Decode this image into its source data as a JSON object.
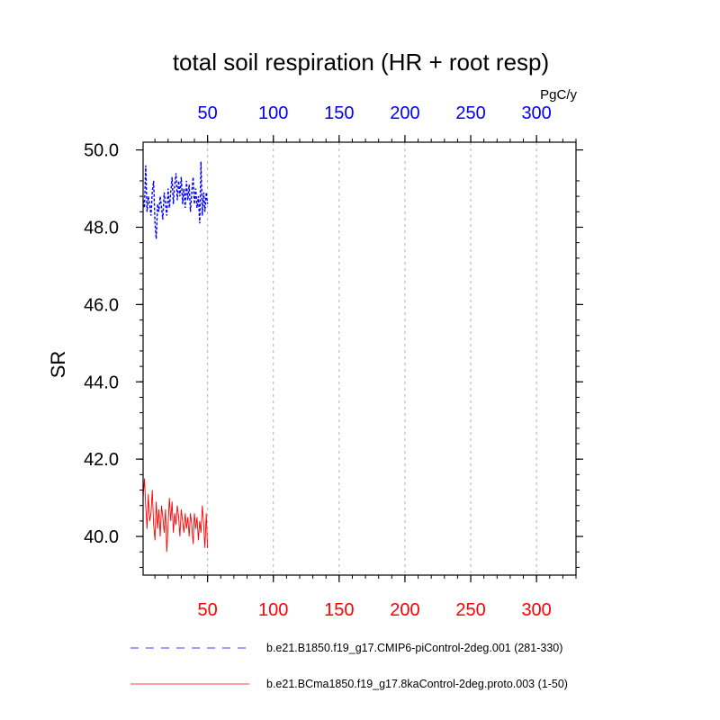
{
  "chart_data": {
    "type": "line",
    "title": "total soil respiration (HR + root resp)",
    "ylabel": "SR",
    "units": "PgC/y",
    "ylim": [
      39.0,
      50.2
    ],
    "y_ticks": [
      "40.0",
      "42.0",
      "44.0",
      "46.0",
      "48.0",
      "50.0"
    ],
    "y_tick_values": [
      40,
      42,
      44,
      46,
      48,
      50
    ],
    "xlim": [
      1,
      330
    ],
    "x_ticks": [
      "50",
      "100",
      "150",
      "200",
      "250",
      "300"
    ],
    "x_tick_values": [
      50,
      100,
      150,
      200,
      250,
      300
    ],
    "grid": "vertical dashed at x ticks",
    "legend_placement": "bottom",
    "series": [
      {
        "name": "b.e21.B1850.f19_g17.CMIP6-piControl-2deg.001 (281-330)",
        "color": "#0000ff",
        "style": "dashed",
        "axis": "top",
        "x": [
          1,
          2,
          3,
          4,
          5,
          6,
          7,
          8,
          9,
          10,
          11,
          12,
          13,
          14,
          15,
          16,
          17,
          18,
          19,
          20,
          21,
          22,
          23,
          24,
          25,
          26,
          27,
          28,
          29,
          30,
          31,
          32,
          33,
          34,
          35,
          36,
          37,
          38,
          39,
          40,
          41,
          42,
          43,
          44,
          45,
          46,
          47,
          48,
          49,
          50
        ],
        "y": [
          48.7,
          48.5,
          49.6,
          48.4,
          48.8,
          48.6,
          48.3,
          48.9,
          49.2,
          48.1,
          47.7,
          48.6,
          48.4,
          48.8,
          48.5,
          48.2,
          48.9,
          48.6,
          48.3,
          49.0,
          48.5,
          48.9,
          49.3,
          48.6,
          49.1,
          49.4,
          48.7,
          49.2,
          48.8,
          49.3,
          48.6,
          49.0,
          48.5,
          49.2,
          48.7,
          49.1,
          48.4,
          48.9,
          49.3,
          48.6,
          49.0,
          48.5,
          48.8,
          48.1,
          49.7,
          48.3,
          48.9,
          48.4,
          48.9,
          48.6
        ]
      },
      {
        "name": "b.e21.BCma1850.f19_g17.8kaControl-2deg.proto.003 (1-50)",
        "color": "#ff0000",
        "style": "solid",
        "axis": "bottom",
        "x": [
          1,
          2,
          3,
          4,
          5,
          6,
          7,
          8,
          9,
          10,
          11,
          12,
          13,
          14,
          15,
          16,
          17,
          18,
          19,
          20,
          21,
          22,
          23,
          24,
          25,
          26,
          27,
          28,
          29,
          30,
          31,
          32,
          33,
          34,
          35,
          36,
          37,
          38,
          39,
          40,
          41,
          42,
          43,
          44,
          45,
          46,
          47,
          48,
          49,
          50
        ],
        "y": [
          41.0,
          41.5,
          40.8,
          40.2,
          41.1,
          40.4,
          40.6,
          41.2,
          40.3,
          39.9,
          40.9,
          40.2,
          40.7,
          40.0,
          40.8,
          40.5,
          40.1,
          40.7,
          39.6,
          40.3,
          41.0,
          40.4,
          40.9,
          40.1,
          40.6,
          40.3,
          40.8,
          40.5,
          40.0,
          40.7,
          40.4,
          40.1,
          40.6,
          40.2,
          40.5,
          40.0,
          40.6,
          40.3,
          39.8,
          40.6,
          40.2,
          40.5,
          39.9,
          40.4,
          40.1,
          40.8,
          40.3,
          39.7,
          40.6,
          39.7
        ]
      }
    ]
  }
}
